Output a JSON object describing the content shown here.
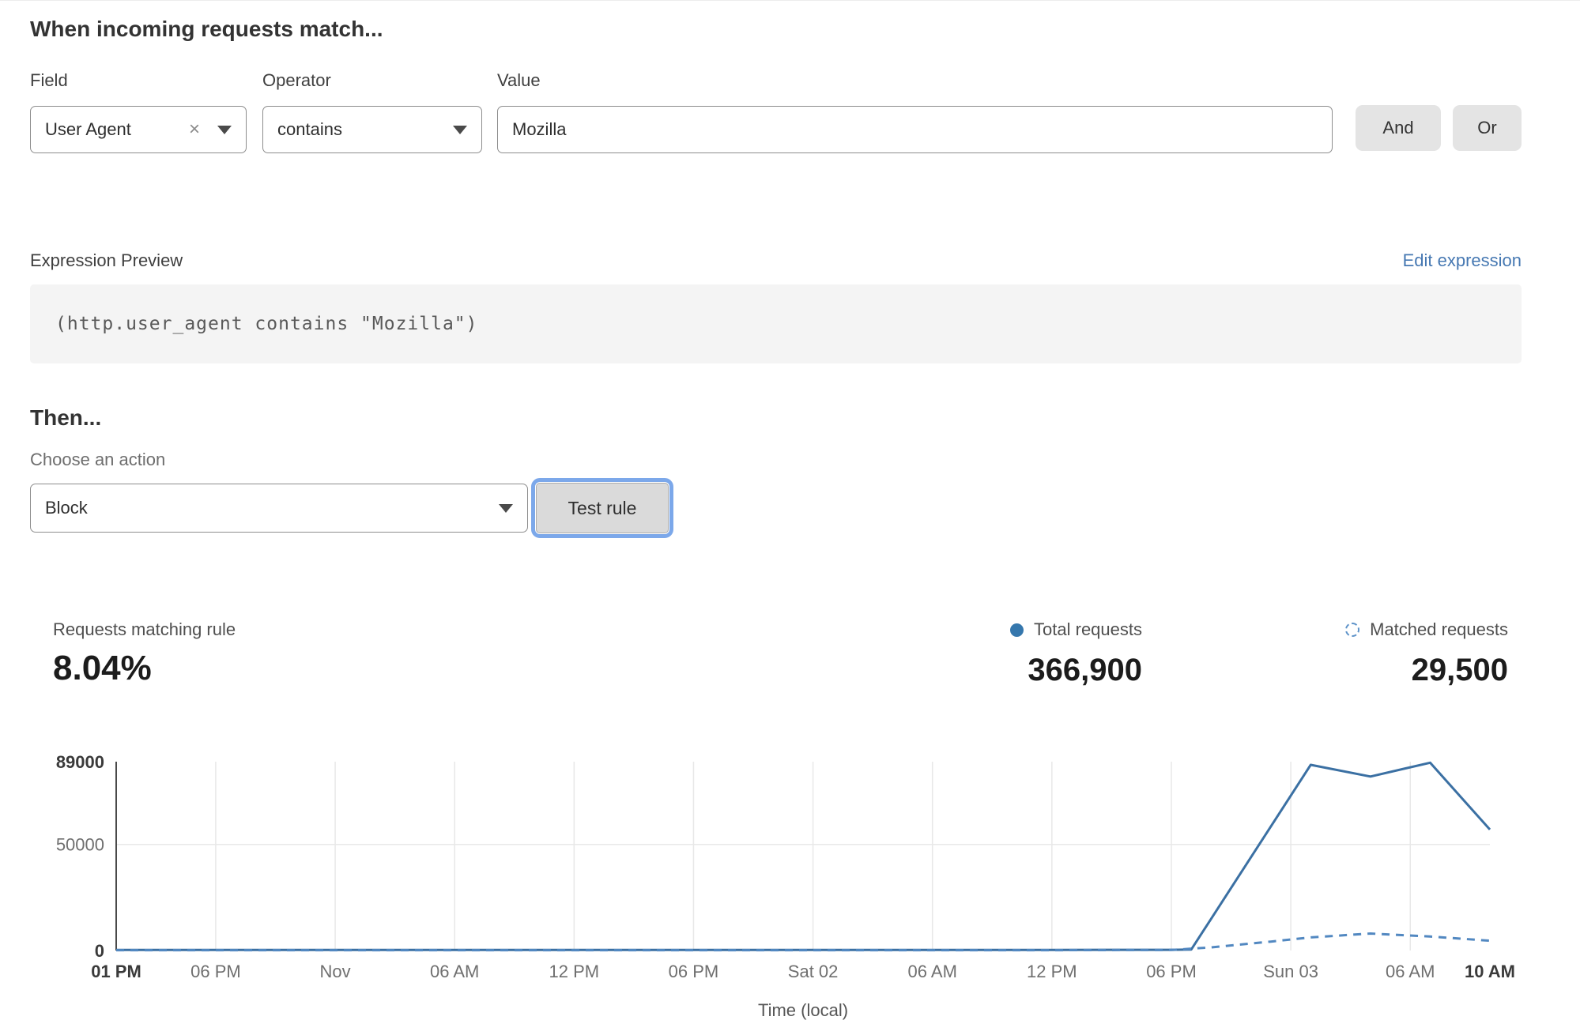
{
  "header": {
    "title": "When incoming requests match..."
  },
  "rule": {
    "field_label": "Field",
    "operator_label": "Operator",
    "value_label": "Value",
    "field_value": "User Agent",
    "clear_icon": "×",
    "operator_value": "contains",
    "value_value": "Mozilla",
    "and_label": "And",
    "or_label": "Or"
  },
  "expression": {
    "label": "Expression Preview",
    "edit_link": "Edit expression",
    "code": "(http.user_agent contains \"Mozilla\")"
  },
  "then": {
    "title": "Then...",
    "action_label": "Choose an action",
    "action_value": "Block",
    "test_button": "Test rule"
  },
  "stats": {
    "match_label": "Requests matching rule",
    "match_value": "8.04%",
    "total_label": "Total requests",
    "total_value": "366,900",
    "matched_label": "Matched requests",
    "matched_value": "29,500"
  },
  "colors": {
    "total_line": "#3b70a3",
    "matched_line": "#5288c1",
    "legend_dot": "#3577ad",
    "grid": "#e8e8e8",
    "axis": "#4a4a4a",
    "tick_bold": "#3a3a3a",
    "tick_muted": "#6f6f6f",
    "link_blue": "#4678b2"
  },
  "chart_data": {
    "type": "line",
    "title": "",
    "xlabel": "Time (local)",
    "ylabel": "",
    "xlim_hours": [
      0,
      69
    ],
    "ylim": [
      0,
      89000
    ],
    "grid": {
      "horizontal_gridlines_at": [
        50000
      ],
      "vertical_gridlines": "at each x tick"
    },
    "legend_position": "above-right",
    "yticks": [
      {
        "value": 89000,
        "label": "89000",
        "bold": true
      },
      {
        "value": 50000,
        "label": "50000",
        "bold": false
      },
      {
        "value": 0,
        "label": "0",
        "bold": true
      }
    ],
    "xticks": [
      {
        "h": 0,
        "label": "01 PM",
        "bold": true
      },
      {
        "h": 5,
        "label": "06 PM",
        "bold": false
      },
      {
        "h": 11,
        "label": "Nov",
        "bold": false
      },
      {
        "h": 17,
        "label": "06 AM",
        "bold": false
      },
      {
        "h": 23,
        "label": "12 PM",
        "bold": false
      },
      {
        "h": 29,
        "label": "06 PM",
        "bold": false
      },
      {
        "h": 35,
        "label": "Sat 02",
        "bold": false
      },
      {
        "h": 41,
        "label": "06 AM",
        "bold": false
      },
      {
        "h": 47,
        "label": "12 PM",
        "bold": false
      },
      {
        "h": 53,
        "label": "06 PM",
        "bold": false
      },
      {
        "h": 59,
        "label": "Sun 03",
        "bold": false
      },
      {
        "h": 65,
        "label": "06 AM",
        "bold": false
      },
      {
        "h": 69,
        "label": "10 AM",
        "bold": true
      }
    ],
    "series": [
      {
        "name": "Total requests",
        "style": "solid",
        "color": "#3b70a3",
        "points": [
          [
            0,
            300
          ],
          [
            5,
            300
          ],
          [
            11,
            300
          ],
          [
            17,
            300
          ],
          [
            23,
            300
          ],
          [
            29,
            300
          ],
          [
            35,
            300
          ],
          [
            41,
            300
          ],
          [
            47,
            300
          ],
          [
            53,
            350
          ],
          [
            54,
            500
          ],
          [
            60,
            87500
          ],
          [
            63,
            82000
          ],
          [
            66,
            88500
          ],
          [
            69,
            57000
          ]
        ]
      },
      {
        "name": "Matched requests",
        "style": "dashed",
        "color": "#5288c1",
        "points": [
          [
            0,
            150
          ],
          [
            47,
            150
          ],
          [
            53,
            250
          ],
          [
            55,
            1500
          ],
          [
            58,
            4200
          ],
          [
            60,
            6200
          ],
          [
            63,
            8000
          ],
          [
            66,
            6600
          ],
          [
            69,
            4600
          ]
        ]
      }
    ]
  }
}
